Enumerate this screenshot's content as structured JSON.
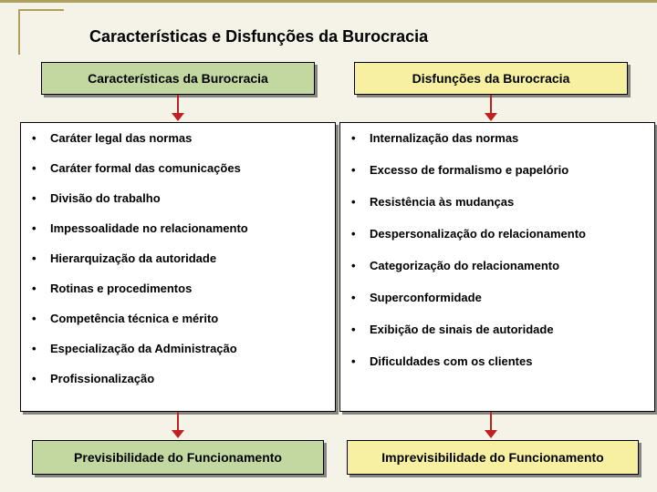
{
  "layout": {
    "bg_color": "#f5f3e8",
    "frame_color": "#b0a060",
    "shadow": "3px 3px 0 rgba(0,0,0,0.45)"
  },
  "title": {
    "text": "Características e Disfunções da Burocracia",
    "fontsize": 18
  },
  "headers": {
    "left": {
      "text": "Características da Burocracia",
      "bg": "#c2d8a0"
    },
    "right": {
      "text": "Disfunções da Burocracia",
      "bg": "#f6f0a0"
    }
  },
  "lists": {
    "left": {
      "items": [
        "Caráter legal das normas",
        "Caráter formal das comunicações",
        "Divisão do trabalho",
        "Impessoalidade no relacionamento",
        "Hierarquização da autoridade",
        "Rotinas e procedimentos",
        "Competência técnica e mérito",
        "Especialização da Administração",
        "Profissionalização"
      ],
      "row_gap": 18
    },
    "right": {
      "items": [
        "Internalização das normas",
        "Excesso de formalismo e papelório",
        "Resistência às mudanças",
        "Despersonalização do relacionamento",
        "Categorização do relacionamento",
        "Superconformidade",
        "Exibição de sinais de autoridade",
        "Dificuldades com os clientes"
      ],
      "row_gap": 20
    }
  },
  "footers": {
    "left": {
      "text": "Previsibilidade do Funcionamento",
      "bg": "#c2d8a0"
    },
    "right": {
      "text": "Imprevisibilidade do Funcionamento",
      "bg": "#f6f0a0"
    }
  },
  "arrows": {
    "color": "#c02020",
    "stem_width": 2,
    "head_size": 7
  }
}
